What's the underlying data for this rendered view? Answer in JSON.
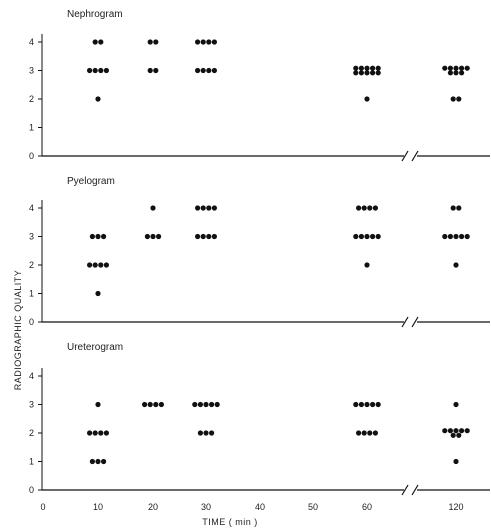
{
  "chart_data": {
    "type": "scatter",
    "x_axis": {
      "label": "TIME ( min )",
      "ticks": [
        0,
        10,
        20,
        30,
        40,
        50,
        60,
        120
      ],
      "tick_labels": [
        "0",
        "10",
        "20",
        "30",
        "40",
        "50",
        "60",
        "120"
      ],
      "break_between": [
        50,
        60
      ]
    },
    "y_axis": {
      "label": "RADIOGRAPHIC QUALITY",
      "ticks": [
        0,
        1,
        2,
        3,
        4
      ],
      "ylim": [
        0,
        4
      ]
    },
    "grid": false,
    "colors": {
      "marker": "#111111",
      "axis": "#111111",
      "text": "#222222"
    },
    "panels": [
      {
        "title": "Nephrogram",
        "points": [
          {
            "x": 10,
            "y": 4,
            "count": 2
          },
          {
            "x": 10,
            "y": 3,
            "count": 4
          },
          {
            "x": 10,
            "y": 2,
            "count": 1
          },
          {
            "x": 20,
            "y": 4,
            "count": 2
          },
          {
            "x": 20,
            "y": 3,
            "count": 2
          },
          {
            "x": 30,
            "y": 4,
            "count": 4
          },
          {
            "x": 30,
            "y": 3,
            "count": 4
          },
          {
            "x": 60,
            "y": 3,
            "count": 10
          },
          {
            "x": 60,
            "y": 2,
            "count": 1
          },
          {
            "x": 120,
            "y": 3,
            "count": 8
          },
          {
            "x": 120,
            "y": 2,
            "count": 2
          }
        ]
      },
      {
        "title": "Pyelogram",
        "points": [
          {
            "x": 10,
            "y": 3,
            "count": 3
          },
          {
            "x": 10,
            "y": 2,
            "count": 4
          },
          {
            "x": 10,
            "y": 1,
            "count": 1
          },
          {
            "x": 20,
            "y": 4,
            "count": 1
          },
          {
            "x": 20,
            "y": 3,
            "count": 3
          },
          {
            "x": 30,
            "y": 4,
            "count": 4
          },
          {
            "x": 30,
            "y": 3,
            "count": 4
          },
          {
            "x": 60,
            "y": 4,
            "count": 4
          },
          {
            "x": 60,
            "y": 3,
            "count": 5
          },
          {
            "x": 60,
            "y": 2,
            "count": 1
          },
          {
            "x": 120,
            "y": 4,
            "count": 2
          },
          {
            "x": 120,
            "y": 3,
            "count": 5
          },
          {
            "x": 120,
            "y": 2,
            "count": 1
          }
        ]
      },
      {
        "title": "Ureterogram",
        "points": [
          {
            "x": 10,
            "y": 3,
            "count": 1
          },
          {
            "x": 10,
            "y": 2,
            "count": 4
          },
          {
            "x": 10,
            "y": 1,
            "count": 3
          },
          {
            "x": 20,
            "y": 3,
            "count": 4
          },
          {
            "x": 30,
            "y": 3,
            "count": 5
          },
          {
            "x": 30,
            "y": 2,
            "count": 3
          },
          {
            "x": 60,
            "y": 3,
            "count": 5
          },
          {
            "x": 60,
            "y": 2,
            "count": 4
          },
          {
            "x": 120,
            "y": 3,
            "count": 1
          },
          {
            "x": 120,
            "y": 2,
            "count": 7
          },
          {
            "x": 120,
            "y": 1,
            "count": 1
          }
        ]
      }
    ]
  }
}
